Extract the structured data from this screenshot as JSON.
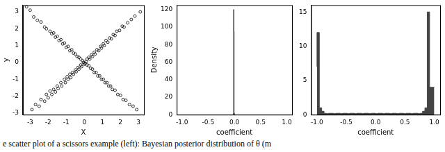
{
  "chart_data": [
    {
      "type": "scatter",
      "xlabel": "X",
      "ylabel": "y",
      "marker": "circle",
      "color": "#000000",
      "xlim": [
        -3.4,
        3.3
      ],
      "xticks": [
        -3,
        -2,
        -1,
        0,
        1,
        2,
        3
      ],
      "ylim": [
        -3.1,
        3.4
      ],
      "yticks": [
        -3,
        -2,
        -1,
        0,
        1,
        2,
        3
      ],
      "x": [
        -2.9,
        -2.7,
        -2.5,
        -2.4,
        -2.2,
        -2.1,
        -2.0,
        -1.9,
        -1.8,
        -1.7,
        -1.6,
        -1.5,
        -1.45,
        -1.3,
        -1.25,
        -1.1,
        -1.05,
        -0.95,
        -0.9,
        -0.8,
        -0.75,
        -0.65,
        -0.6,
        -0.5,
        -0.45,
        -0.35,
        -0.3,
        -0.2,
        -0.15,
        -0.05,
        0.0,
        0.1,
        0.15,
        0.25,
        0.3,
        0.4,
        0.45,
        0.55,
        0.6,
        0.7,
        0.8,
        0.9,
        0.95,
        1.05,
        1.1,
        1.2,
        1.3,
        1.4,
        1.5,
        1.6,
        1.7,
        1.8,
        1.95,
        2.1,
        2.2,
        2.4,
        2.6,
        2.8,
        3.1,
        -3.2,
        -3.0,
        -2.8,
        -2.6,
        -2.4,
        -2.2,
        -2.1,
        -1.9,
        -1.8,
        -1.7,
        -1.6,
        -1.5,
        -1.4,
        -1.3,
        -1.2,
        -1.1,
        -1.0,
        -0.9,
        -0.8,
        -0.7,
        -0.6,
        -0.5,
        -0.4,
        -0.3,
        -0.2,
        -0.1,
        0.05,
        0.15,
        0.25,
        0.35,
        0.45,
        0.55,
        0.65,
        0.75,
        0.85,
        0.95,
        1.05,
        1.15,
        1.25,
        1.35,
        1.45,
        1.55,
        1.7,
        1.85,
        2.0,
        2.15,
        2.3,
        2.5,
        2.7,
        2.9
      ],
      "values": [
        -2.8,
        -2.5,
        -2.6,
        -2.2,
        -2.3,
        -1.9,
        -2.1,
        -1.7,
        -1.9,
        -1.6,
        -1.75,
        -1.4,
        -1.55,
        -1.2,
        -1.4,
        -1.0,
        -1.2,
        -0.85,
        -1.0,
        -0.7,
        -0.9,
        -0.6,
        -0.7,
        -0.45,
        -0.55,
        -0.3,
        -0.4,
        -0.15,
        -0.25,
        0.0,
        -0.1,
        0.05,
        0.2,
        0.3,
        0.2,
        0.45,
        0.35,
        0.6,
        0.5,
        0.75,
        0.7,
        0.95,
        0.85,
        1.1,
        1.0,
        1.3,
        1.2,
        1.45,
        1.4,
        1.65,
        1.6,
        1.85,
        1.9,
        2.15,
        2.1,
        2.35,
        2.55,
        2.75,
        3.0,
        3.3,
        3.1,
        2.7,
        2.5,
        2.4,
        2.1,
        2.0,
        1.85,
        1.7,
        1.75,
        1.5,
        1.55,
        1.3,
        1.35,
        1.1,
        1.15,
        0.9,
        0.95,
        0.7,
        0.75,
        0.55,
        0.5,
        0.35,
        0.3,
        0.2,
        0.1,
        -0.05,
        -0.15,
        -0.2,
        -0.35,
        -0.4,
        -0.6,
        -0.6,
        -0.8,
        -0.8,
        -1.0,
        -1.0,
        -1.2,
        -1.2,
        -1.4,
        -1.4,
        -1.6,
        -1.65,
        -1.9,
        -1.95,
        -2.2,
        -2.25,
        -2.5,
        -2.6,
        -2.8
      ]
    },
    {
      "type": "histogram",
      "xlabel": "coefficient",
      "ylabel": "Density",
      "color": "#444444",
      "xlim": [
        -1.1,
        1.1
      ],
      "xticks": [
        {
          "value": -1,
          "label": "-1.0"
        },
        {
          "value": -0.5,
          "label": "-0.5"
        },
        {
          "value": 0,
          "label": "0.0"
        },
        {
          "value": 0.5,
          "label": "0.5"
        },
        {
          "value": 1,
          "label": "1.0"
        }
      ],
      "ylim": [
        0,
        125
      ],
      "yticks": [
        0,
        20,
        40,
        60,
        80,
        100,
        120
      ],
      "bins": [
        -0.02,
        -0.015,
        -0.01,
        -0.005,
        0.0,
        0.005,
        0.01,
        0.015
      ],
      "values": [
        0,
        1,
        120,
        95,
        2,
        0,
        0
      ]
    },
    {
      "type": "histogram",
      "xlabel": "coefficient",
      "color": "#444444",
      "xlim": [
        -1.1,
        1.1
      ],
      "xticks": [
        {
          "value": -1,
          "label": "-1.0"
        },
        {
          "value": -0.5,
          "label": "-0.5"
        },
        {
          "value": 0,
          "label": "0.0"
        },
        {
          "value": 0.5,
          "label": "0.5"
        },
        {
          "value": 1,
          "label": "1.0"
        }
      ],
      "ylim": [
        0,
        16
      ],
      "yticks": [
        0,
        5,
        10,
        15
      ],
      "bins": [
        -1.0,
        -0.96,
        -0.92,
        -0.88,
        -0.84,
        -0.8,
        -0.76,
        -0.72,
        -0.68,
        -0.64,
        -0.6,
        -0.56,
        -0.52,
        -0.48,
        -0.44,
        -0.4,
        -0.36,
        -0.32,
        -0.28,
        -0.24,
        -0.2,
        -0.16,
        -0.12,
        -0.08,
        -0.04,
        0.0,
        0.04,
        0.08,
        0.12,
        0.16,
        0.2,
        0.24,
        0.28,
        0.32,
        0.36,
        0.4,
        0.44,
        0.48,
        0.52,
        0.56,
        0.6,
        0.64,
        0.68,
        0.72,
        0.76,
        0.8,
        0.84,
        0.88,
        0.92,
        0.96,
        1.0
      ],
      "values": [
        7,
        12,
        1,
        0.5,
        0.2,
        0.15,
        0.2,
        0.2,
        0.15,
        0.2,
        0.2,
        0.15,
        0.2,
        0.2,
        0.15,
        0.2,
        0.2,
        0.15,
        0.2,
        0.2,
        0.15,
        0.2,
        0.2,
        0.15,
        0.2,
        0.2,
        0.15,
        0.2,
        0.2,
        0.15,
        0.2,
        0.2,
        0.15,
        0.2,
        0.2,
        0.15,
        0.2,
        0.2,
        0.15,
        0.2,
        0.2,
        0.15,
        0.2,
        0.2,
        0.15,
        0.2,
        0.5,
        1,
        15,
        4
      ]
    }
  ],
  "caption": "e scatter plot of a scissors example (left): Bayesian posterior distribution of θ (m"
}
